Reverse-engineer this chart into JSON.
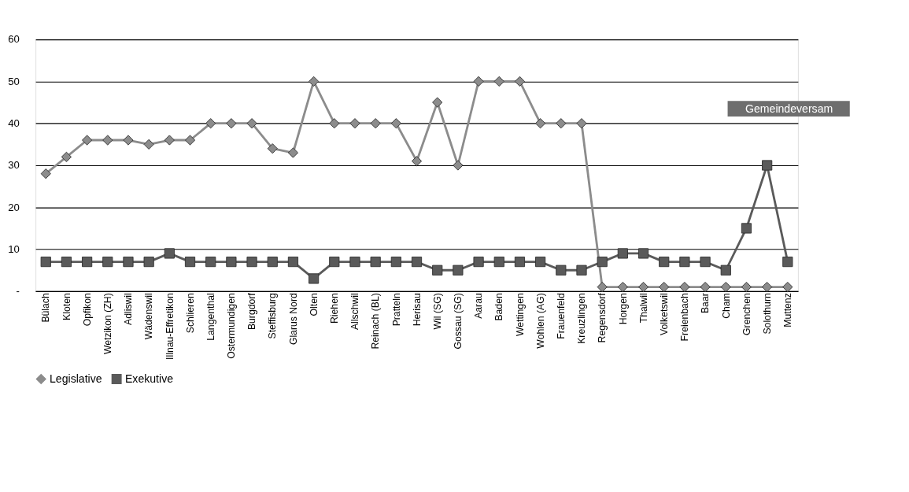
{
  "chart_data": {
    "type": "line",
    "categories": [
      "Bülach",
      "Kloten",
      "Opfikon",
      "Wetzikon (ZH)",
      "Adliswil",
      "Wädenswil",
      "Illnau-Effretikon",
      "Schlieren",
      "Langenthal",
      "Ostermundigen",
      "Burgdorf",
      "Steffisburg",
      "Glarus Nord",
      "Olten",
      "Riehen",
      "Allschwil",
      "Reinach (BL)",
      "Pratteln",
      "Herisau",
      "Wil (SG)",
      "Gossau (SG)",
      "Aarau",
      "Baden",
      "Wettingen",
      "Wohlen (AG)",
      "Frauenfeld",
      "Kreuzlingen",
      "Regensdorf",
      "Horgen",
      "Thalwil",
      "Volketswil",
      "Freienbach",
      "Baar",
      "Cham",
      "Grenchen",
      "Solothurn",
      "Muttenz"
    ],
    "series": [
      {
        "name": "Legislative",
        "color": "#8c8c8c",
        "marker": "diamond",
        "values": [
          28,
          32,
          36,
          36,
          36,
          35,
          36,
          36,
          40,
          40,
          40,
          34,
          33,
          50,
          40,
          40,
          40,
          40,
          31,
          45,
          30,
          50,
          50,
          50,
          40,
          40,
          40,
          1,
          1,
          1,
          1,
          1,
          1,
          1,
          1,
          1,
          1
        ]
      },
      {
        "name": "Exekutive",
        "color": "#5a5a5a",
        "marker": "square",
        "values": [
          7,
          7,
          7,
          7,
          7,
          7,
          9,
          7,
          7,
          7,
          7,
          7,
          7,
          3,
          7,
          7,
          7,
          7,
          7,
          5,
          5,
          7,
          7,
          7,
          7,
          5,
          5,
          7,
          9,
          9,
          7,
          7,
          7,
          5,
          15,
          30,
          7
        ]
      }
    ],
    "ylim": [
      0,
      60
    ],
    "yticks": [
      {
        "value": 0,
        "label": "-"
      },
      10,
      20,
      30,
      40,
      50,
      60
    ],
    "grid": "y",
    "legend": "bottom",
    "line_style": "solid",
    "annotations": [
      "Gemeindeversam"
    ]
  }
}
